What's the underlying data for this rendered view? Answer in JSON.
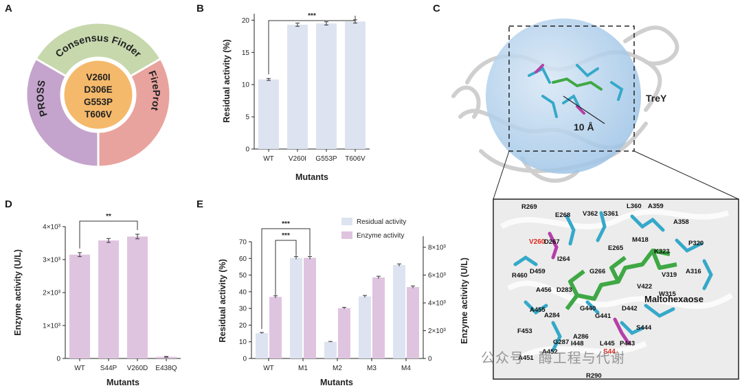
{
  "panels": {
    "a": "A",
    "b": "B",
    "c": "C",
    "d": "D",
    "e": "E"
  },
  "panelA": {
    "ring": [
      "Consensus Finder",
      "FireProt",
      "PROSS"
    ],
    "mutations": [
      "V260I",
      "D306E",
      "G553P",
      "T606V"
    ],
    "colors": {
      "consensus": "#c7d8ad",
      "fireprot": "#e9a39e",
      "pross": "#c4a4cc",
      "center": "#f5b96b"
    }
  },
  "panelC": {
    "protein_label": "TreY",
    "radius_label": "10 Å",
    "ligand_label": "Maltohexaose",
    "residues": [
      {
        "text": "R269"
      },
      {
        "text": "E268"
      },
      {
        "text": "V362"
      },
      {
        "text": "S361"
      },
      {
        "text": "L360"
      },
      {
        "text": "A359"
      },
      {
        "text": "A358"
      },
      {
        "text": "V260",
        "red": true
      },
      {
        "text": "D267"
      },
      {
        "text": "E265"
      },
      {
        "text": "M418"
      },
      {
        "text": "K323"
      },
      {
        "text": "P320"
      },
      {
        "text": "I264"
      },
      {
        "text": "R460"
      },
      {
        "text": "D459"
      },
      {
        "text": "G266"
      },
      {
        "text": "A316"
      },
      {
        "text": "V319"
      },
      {
        "text": "V422"
      },
      {
        "text": "A456"
      },
      {
        "text": "D283"
      },
      {
        "text": "A455"
      },
      {
        "text": "W315"
      },
      {
        "text": "D442"
      },
      {
        "text": "G440"
      },
      {
        "text": "G441"
      },
      {
        "text": "A284"
      },
      {
        "text": "A286"
      },
      {
        "text": "S444"
      },
      {
        "text": "F453"
      },
      {
        "text": "G287"
      },
      {
        "text": "I448"
      },
      {
        "text": "L445"
      },
      {
        "text": "P443"
      },
      {
        "text": "A452"
      },
      {
        "text": "S44",
        "red": true
      },
      {
        "text": "A451"
      },
      {
        "text": "R290"
      }
    ]
  },
  "watermark": "公众号 · 酶工程与代谢",
  "chart_data": [
    {
      "panel": "B",
      "type": "bar",
      "categories": [
        "WT",
        "V260I",
        "G553P",
        "T606V"
      ],
      "values": [
        10.8,
        19.3,
        19.5,
        19.8
      ],
      "errors": [
        0.15,
        0.25,
        0.25,
        0.25
      ],
      "xlabel": "Mutants",
      "ylabel": "Residual activity (%)",
      "ylim": [
        0,
        21
      ],
      "yticks": [
        "0",
        "5",
        "10",
        "15",
        "20"
      ],
      "significance": "***",
      "bar_color": "#dde3f0"
    },
    {
      "panel": "D",
      "type": "bar",
      "categories": [
        "WT",
        "S44P",
        "V260D",
        "E438Q"
      ],
      "values": [
        3150,
        3580,
        3700,
        50
      ],
      "errors": [
        60,
        60,
        70,
        10
      ],
      "xlabel": "Mutants",
      "ylabel": "Enzyme activity (U/L)",
      "ylim": [
        0,
        4000
      ],
      "yticks": [
        "0",
        "1×10³",
        "2×10³",
        "3×10³",
        "4×10³"
      ],
      "significance": "**",
      "bar_color": "#dfc4e0"
    },
    {
      "panel": "E",
      "type": "bar",
      "categories": [
        "WT",
        "M1",
        "M2",
        "M3",
        "M4"
      ],
      "xlabel": "Mutants",
      "ylabel": "Residual activity (%)",
      "ylabel_right": "Enzyme activity (U/L)",
      "ylim": [
        0,
        70
      ],
      "ylim_right": [
        0,
        8400
      ],
      "yticks": [
        "0",
        "10",
        "20",
        "30",
        "40",
        "50",
        "60",
        "70"
      ],
      "yticks_right": [
        "0",
        "2×10³",
        "4×10³",
        "6×10³",
        "8×10³"
      ],
      "significance": [
        "***",
        "***"
      ],
      "series": [
        {
          "name": "Residual activity",
          "values": [
            15.2,
            60.3,
            10.0,
            37.2,
            56.0
          ],
          "errors": [
            0.4,
            0.8,
            0.2,
            0.6,
            0.7
          ],
          "color": "#dde3f0"
        },
        {
          "name": "Enzyme activity",
          "values": [
            4430,
            7240,
            3620,
            5830,
            5140
          ],
          "errors": [
            80,
            100,
            60,
            90,
            80
          ],
          "color": "#dfc4e0"
        }
      ]
    }
  ]
}
